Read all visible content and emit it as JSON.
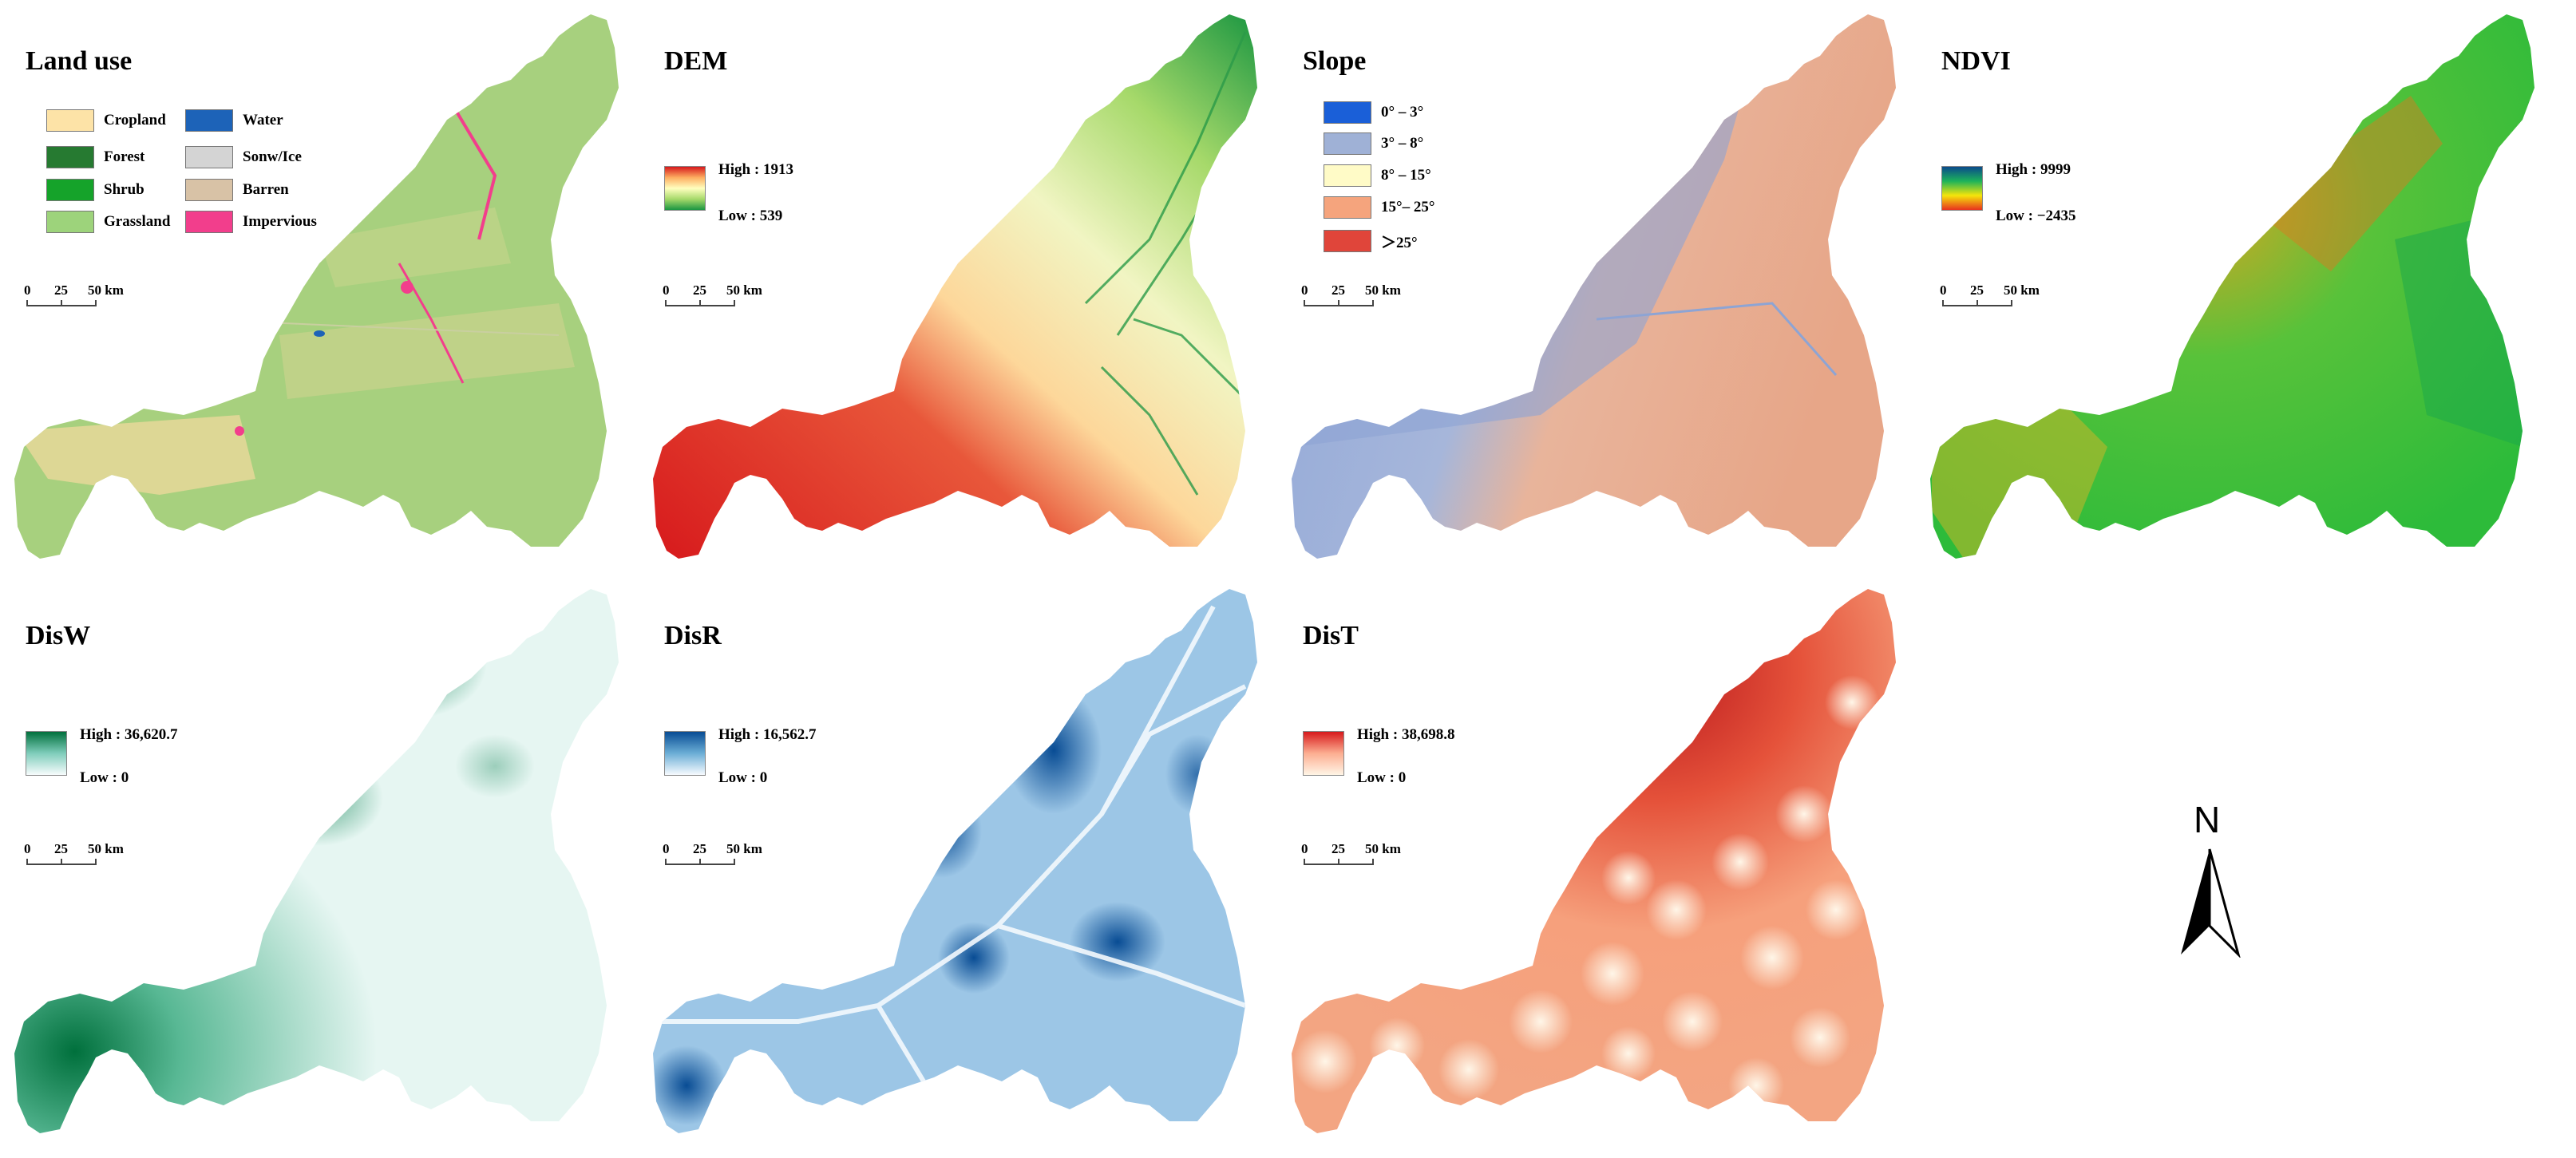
{
  "panels": {
    "landuse": {
      "title": "Land use",
      "legend": [
        {
          "label": "Cropland",
          "color": "#fde3a7"
        },
        {
          "label": "Forest",
          "color": "#267a31"
        },
        {
          "label": "Shrub",
          "color": "#15a32a"
        },
        {
          "label": "Grassland",
          "color": "#9dd37b"
        },
        {
          "label": "Water",
          "color": "#1d63b8"
        },
        {
          "label": "Sonw/Ice",
          "color": "#d4d4d4"
        },
        {
          "label": "Barren",
          "color": "#d8c2a6"
        },
        {
          "label": "Impervious",
          "color": "#f23e8c"
        }
      ],
      "map_colors": {
        "base": "#a7d07e",
        "secondary": "#e3d897"
      }
    },
    "dem": {
      "title": "DEM",
      "high": "High : 1913",
      "low": "Low : 539",
      "colors": [
        "#d7191c",
        "#fdae61",
        "#ffffbf",
        "#a6d96a",
        "#1a9641"
      ],
      "map_colors": {
        "base": "#c8e2a2",
        "secondary": "#e55a3c"
      }
    },
    "slope": {
      "title": "Slope",
      "legend": [
        {
          "label": "0° – 3°",
          "color": "#1a5fd8"
        },
        {
          "label": "3° – 8°",
          "color": "#9fb1d6"
        },
        {
          "label": "8° – 15°",
          "color": "#fffbc7"
        },
        {
          "label": "15°– 25°",
          "color": "#f5a47d"
        },
        {
          "label": "＞25°",
          "color": "#e0453a"
        }
      ],
      "map_colors": {
        "base": "#e8b097",
        "secondary": "#8da4d4"
      }
    },
    "ndvi": {
      "title": "NDVI",
      "high": "High : 9999",
      "low": "Low : −2435",
      "colors": [
        "#0a4a8c",
        "#1db35a",
        "#f5e50a",
        "#e8321e"
      ],
      "map_colors": {
        "base": "#3cc238",
        "secondary": "#d9a21c"
      }
    },
    "disw": {
      "title": "DisW",
      "high": "High : 36,620.7",
      "low": "Low : 0",
      "colors": [
        "#00703c",
        "#7fcdbb",
        "#f7fcfd"
      ],
      "map_colors": {
        "base": "#d8f1ec",
        "secondary": "#1d8a5a"
      }
    },
    "disr": {
      "title": "DisR",
      "high": "High : 16,562.7",
      "low": "Low : 0",
      "colors": [
        "#084c94",
        "#6baed6",
        "#f7fbff"
      ],
      "map_colors": {
        "base": "#6aa8d8",
        "secondary": "#f2f8fd"
      }
    },
    "dist": {
      "title": "DisT",
      "high": "High : 38,698.8",
      "low": "Low : 0",
      "colors": [
        "#d7191c",
        "#fcae91",
        "#fff5e6"
      ],
      "map_colors": {
        "base": "#f4a585",
        "secondary": "#c8221c"
      }
    }
  },
  "scalebar": {
    "ticks": [
      "0",
      "25",
      "50 km"
    ]
  },
  "north_label": "N"
}
